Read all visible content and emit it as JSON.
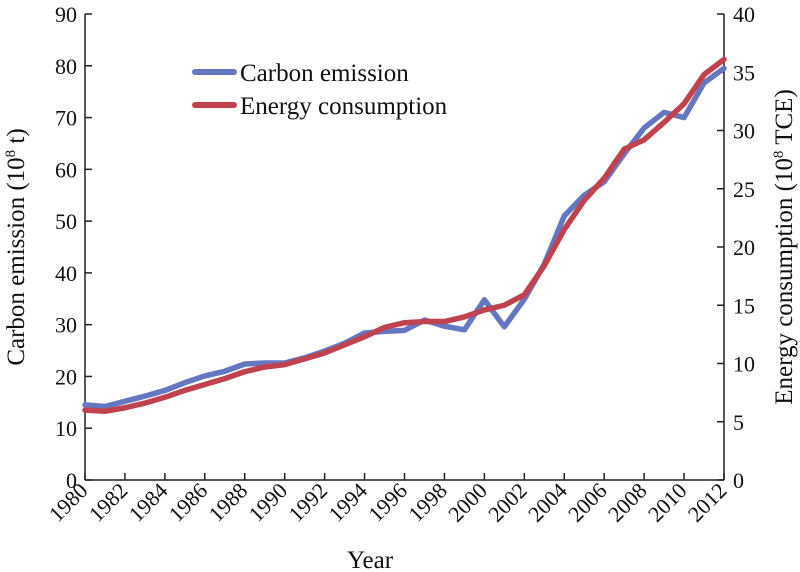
{
  "chart_data": {
    "type": "line",
    "title": "",
    "x_label": "Year",
    "y_left_label": "Carbon emission (10^8 t)",
    "y_left_label_parts": {
      "before": "Carbon emission (10",
      "sup": "8",
      "after": " t)"
    },
    "y_right_label": "Energy consumption (10^8 TCE)",
    "y_right_label_parts": {
      "before": "Energy consumption (10",
      "sup": "8",
      "after": " TCE)"
    },
    "x_range": [
      1980,
      2012
    ],
    "y_left_range": [
      0,
      90
    ],
    "y_right_range": [
      0,
      40
    ],
    "x_tick_labels": [
      "1980",
      "1982",
      "1984",
      "1986",
      "1988",
      "1990",
      "1992",
      "1994",
      "1996",
      "1998",
      "2000",
      "2002",
      "2004",
      "2006",
      "2008",
      "2010",
      "2012"
    ],
    "y_left_tick_labels": [
      "0",
      "10",
      "20",
      "30",
      "40",
      "50",
      "60",
      "70",
      "80",
      "90"
    ],
    "y_right_tick_labels": [
      "0",
      "5",
      "10",
      "15",
      "20",
      "25",
      "30",
      "35",
      "40"
    ],
    "legend_position": "top-left",
    "grid": false,
    "x": [
      1980,
      1981,
      1982,
      1983,
      1984,
      1985,
      1986,
      1987,
      1988,
      1989,
      1990,
      1991,
      1992,
      1993,
      1994,
      1995,
      1996,
      1997,
      1998,
      1999,
      2000,
      2001,
      2002,
      2003,
      2004,
      2005,
      2006,
      2007,
      2008,
      2009,
      2010,
      2011,
      2012
    ],
    "series": [
      {
        "name": "Carbon emission",
        "axis": "left",
        "color": "#6677c2",
        "values": [
          14.5,
          14.2,
          15.2,
          16.2,
          17.3,
          18.8,
          20.1,
          21.0,
          22.4,
          22.6,
          22.6,
          23.6,
          24.9,
          26.4,
          28.4,
          28.7,
          28.9,
          30.9,
          29.7,
          29.0,
          34.8,
          29.6,
          34.9,
          41.7,
          51.0,
          55.0,
          57.6,
          63.0,
          68.0,
          71.0,
          70.0,
          76.7,
          79.5
        ]
      },
      {
        "name": "Energy consumption",
        "axis": "right",
        "color": "#c0424f",
        "values": [
          6.0,
          5.9,
          6.2,
          6.6,
          7.1,
          7.7,
          8.2,
          8.7,
          9.3,
          9.7,
          9.9,
          10.4,
          10.9,
          11.6,
          12.3,
          13.1,
          13.5,
          13.6,
          13.6,
          14.0,
          14.6,
          15.0,
          15.9,
          18.4,
          21.5,
          24.0,
          25.9,
          28.4,
          29.2,
          30.7,
          32.3,
          34.8,
          36.1
        ]
      }
    ]
  }
}
